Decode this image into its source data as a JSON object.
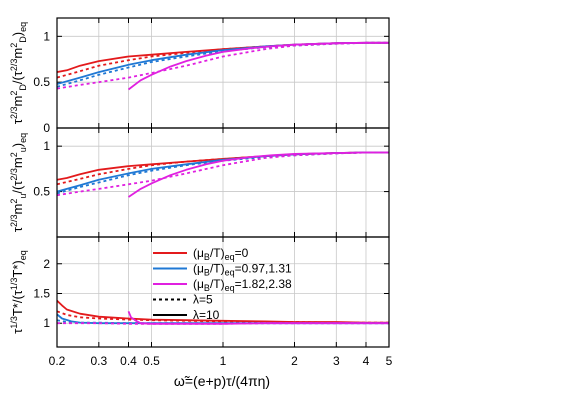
{
  "chart_data": {
    "type": "line",
    "xscale": "log",
    "xlim": [
      0.2,
      5
    ],
    "xticks": [
      0.2,
      0.3,
      0.4,
      0.5,
      1,
      2,
      3,
      4,
      5
    ],
    "xtick_labels": [
      "0.2",
      "0.3",
      "0.4",
      "0.5",
      "1",
      "2",
      "3",
      "4",
      "5"
    ],
    "xlabel_main": "ω̃=(e+p)τ/(4πη)",
    "panels": [
      {
        "id": "top",
        "ylim": [
          0,
          1.2
        ],
        "yticks": [
          0,
          0.5,
          1
        ],
        "ytick_labels": [
          "0",
          "0.5",
          "1"
        ],
        "ylabel_main": "τ",
        "ylabel_rest": "m",
        "ylabel_subs": [
          "2/3",
          "2",
          "D",
          "eq",
          "2/3",
          "2",
          "D",
          "eq"
        ],
        "series": [
          {
            "color": "#e31a1c",
            "dash": "dotted",
            "x": [
              0.2,
              0.25,
              0.3,
              0.4,
              0.5,
              0.7,
              1,
              1.5,
              2,
              3,
              4,
              5
            ],
            "y": [
              0.55,
              0.62,
              0.68,
              0.74,
              0.78,
              0.82,
              0.86,
              0.89,
              0.91,
              0.925,
              0.93,
              0.93
            ]
          },
          {
            "color": "#e31a1c",
            "dash": "solid",
            "x": [
              0.2,
              0.22,
              0.25,
              0.3,
              0.4,
              0.5,
              0.7,
              1,
              1.5,
              2,
              3,
              4,
              5
            ],
            "y": [
              0.61,
              0.63,
              0.68,
              0.73,
              0.78,
              0.8,
              0.83,
              0.86,
              0.89,
              0.91,
              0.925,
              0.93,
              0.93
            ]
          },
          {
            "color": "#1f78d4",
            "dash": "dotted",
            "x": [
              0.2,
              0.25,
              0.3,
              0.4,
              0.5,
              0.7,
              1,
              1.5,
              2,
              3,
              4,
              5
            ],
            "y": [
              0.45,
              0.52,
              0.58,
              0.66,
              0.72,
              0.78,
              0.84,
              0.88,
              0.9,
              0.92,
              0.93,
              0.93
            ]
          },
          {
            "color": "#1f78d4",
            "dash": "solid",
            "x": [
              0.2,
              0.25,
              0.3,
              0.4,
              0.5,
              0.7,
              1,
              1.5,
              2,
              3,
              4,
              5
            ],
            "y": [
              0.48,
              0.55,
              0.61,
              0.69,
              0.74,
              0.8,
              0.85,
              0.89,
              0.91,
              0.925,
              0.93,
              0.93
            ]
          },
          {
            "color": "#e020e0",
            "dash": "dotted",
            "x": [
              0.2,
              0.25,
              0.3,
              0.4,
              0.5,
              0.7,
              1,
              1.5,
              2,
              3,
              4,
              5
            ],
            "y": [
              0.43,
              0.47,
              0.5,
              0.55,
              0.6,
              0.68,
              0.78,
              0.86,
              0.9,
              0.92,
              0.93,
              0.93
            ]
          },
          {
            "color": "#e020e0",
            "dash": "solid",
            "x": [
              0.4,
              0.45,
              0.5,
              0.6,
              0.7,
              0.85,
              1,
              1.3,
              1.6,
              2,
              3,
              4,
              5
            ],
            "y": [
              0.42,
              0.52,
              0.58,
              0.67,
              0.73,
              0.79,
              0.83,
              0.87,
              0.89,
              0.91,
              0.925,
              0.93,
              0.93
            ]
          }
        ]
      },
      {
        "id": "middle",
        "ylim": [
          0,
          1.2
        ],
        "yticks": [
          0.5,
          1
        ],
        "ytick_labels": [
          "0.5",
          "1"
        ],
        "ylabel_main": "τ",
        "ylabel_rest": "m",
        "ylabel_subs": [
          "2/3",
          "2",
          "u",
          "eq",
          "2/3",
          "2",
          "u",
          "eq"
        ],
        "series": [
          {
            "color": "#e31a1c",
            "dash": "dotted",
            "x": [
              0.2,
              0.25,
              0.3,
              0.4,
              0.5,
              0.7,
              1,
              1.5,
              2,
              3,
              4,
              5
            ],
            "y": [
              0.58,
              0.64,
              0.69,
              0.75,
              0.79,
              0.83,
              0.86,
              0.89,
              0.91,
              0.925,
              0.93,
              0.93
            ]
          },
          {
            "color": "#e31a1c",
            "dash": "solid",
            "x": [
              0.2,
              0.22,
              0.25,
              0.3,
              0.4,
              0.5,
              0.7,
              1,
              1.5,
              2,
              3,
              4,
              5
            ],
            "y": [
              0.63,
              0.65,
              0.69,
              0.74,
              0.78,
              0.8,
              0.83,
              0.86,
              0.89,
              0.91,
              0.925,
              0.93,
              0.93
            ]
          },
          {
            "color": "#1f78d4",
            "dash": "dotted",
            "x": [
              0.2,
              0.25,
              0.3,
              0.4,
              0.5,
              0.7,
              1,
              1.5,
              2,
              3,
              4,
              5
            ],
            "y": [
              0.48,
              0.55,
              0.6,
              0.68,
              0.73,
              0.79,
              0.84,
              0.88,
              0.9,
              0.92,
              0.93,
              0.93
            ]
          },
          {
            "color": "#1f78d4",
            "dash": "solid",
            "x": [
              0.2,
              0.25,
              0.3,
              0.4,
              0.5,
              0.7,
              1,
              1.5,
              2,
              3,
              4,
              5
            ],
            "y": [
              0.5,
              0.57,
              0.63,
              0.7,
              0.75,
              0.8,
              0.85,
              0.89,
              0.91,
              0.925,
              0.93,
              0.93
            ]
          },
          {
            "color": "#e020e0",
            "dash": "dotted",
            "x": [
              0.2,
              0.25,
              0.3,
              0.4,
              0.5,
              0.7,
              1,
              1.5,
              2,
              3,
              4,
              5
            ],
            "y": [
              0.46,
              0.5,
              0.53,
              0.58,
              0.62,
              0.7,
              0.79,
              0.87,
              0.9,
              0.92,
              0.93,
              0.93
            ]
          },
          {
            "color": "#e020e0",
            "dash": "solid",
            "x": [
              0.4,
              0.45,
              0.5,
              0.6,
              0.7,
              0.85,
              1,
              1.3,
              1.6,
              2,
              3,
              4,
              5
            ],
            "y": [
              0.44,
              0.53,
              0.59,
              0.68,
              0.74,
              0.8,
              0.84,
              0.88,
              0.9,
              0.915,
              0.925,
              0.93,
              0.93
            ]
          }
        ]
      },
      {
        "id": "bottom",
        "ylim": [
          0.6,
          2.45
        ],
        "yticks": [
          1,
          1.5,
          2
        ],
        "ytick_labels": [
          "1",
          "1.5",
          "2"
        ],
        "ylabel_main": "τ",
        "ylabel_rest": "T*/(τ",
        "ylabel_subs": [
          "1/3",
          "1/3",
          "T*)",
          "eq"
        ],
        "series": [
          {
            "color": "#e31a1c",
            "dash": "dotted",
            "x": [
              0.2,
              0.22,
              0.25,
              0.3,
              0.4,
              0.5,
              0.7,
              1,
              1.5,
              2,
              3,
              4,
              5
            ],
            "y": [
              1.2,
              1.14,
              1.1,
              1.08,
              1.06,
              1.05,
              1.04,
              1.03,
              1.02,
              1.02,
              1.01,
              1.01,
              1.01
            ]
          },
          {
            "color": "#e31a1c",
            "dash": "solid",
            "x": [
              0.2,
              0.21,
              0.22,
              0.25,
              0.3,
              0.4,
              0.5,
              0.7,
              1,
              1.5,
              2,
              3,
              4,
              5
            ],
            "y": [
              1.38,
              1.3,
              1.23,
              1.16,
              1.11,
              1.08,
              1.06,
              1.05,
              1.04,
              1.03,
              1.02,
              1.02,
              1.01,
              1.01
            ]
          },
          {
            "color": "#1f78d4",
            "dash": "dotted",
            "x": [
              0.2,
              0.22,
              0.25,
              0.3,
              0.4,
              0.5,
              0.7,
              1,
              1.5,
              2,
              3,
              4,
              5
            ],
            "y": [
              1.05,
              1.02,
              1.01,
              1.01,
              1.0,
              1.0,
              1.0,
              1.0,
              1.0,
              1.0,
              1.0,
              1.0,
              1.0
            ]
          },
          {
            "color": "#1f78d4",
            "dash": "solid",
            "x": [
              0.2,
              0.21,
              0.23,
              0.25,
              0.3,
              0.4,
              0.5,
              0.7,
              1,
              1.5,
              2,
              3,
              4,
              5
            ],
            "y": [
              1.15,
              1.08,
              1.03,
              1.01,
              1.0,
              1.0,
              1.0,
              1.0,
              1.0,
              1.0,
              1.0,
              1.0,
              1.0,
              1.0
            ]
          },
          {
            "color": "#e020e0",
            "dash": "dotted",
            "x": [
              0.2,
              0.25,
              0.3,
              0.4,
              0.5,
              0.7,
              1,
              1.5,
              2,
              3,
              4,
              5
            ],
            "y": [
              1.0,
              1.0,
              1.0,
              0.99,
              0.99,
              0.99,
              0.99,
              1.0,
              1.0,
              1.0,
              1.0,
              1.0
            ]
          },
          {
            "color": "#e020e0",
            "dash": "solid",
            "x": [
              0.4,
              0.41,
              0.43,
              0.45,
              0.5,
              0.6,
              0.7,
              1,
              1.5,
              2,
              3,
              4,
              5
            ],
            "y": [
              1.2,
              1.1,
              1.04,
              1.0,
              0.99,
              0.99,
              0.99,
              0.99,
              1.0,
              1.0,
              1.0,
              1.0,
              1.0
            ]
          }
        ]
      }
    ],
    "legend": {
      "position": "bottom-panel-center",
      "entries": [
        {
          "label": "(μ",
          "sub_a": "B",
          "mid": "/T)",
          "sub_b": "eq",
          "tail": "=0",
          "color": "#e31a1c",
          "dash": "solid"
        },
        {
          "label": "(μ",
          "sub_a": "B",
          "mid": "/T)",
          "sub_b": "eq",
          "tail": "=0.97,1.31",
          "color": "#1f78d4",
          "dash": "solid"
        },
        {
          "label": "(μ",
          "sub_a": "B",
          "mid": "/T)",
          "sub_b": "eq",
          "tail": "=1.82,2.38",
          "color": "#e020e0",
          "dash": "solid"
        },
        {
          "label": "λ=5",
          "color": "#000000",
          "dash": "dotted"
        },
        {
          "label": "λ=10",
          "color": "#000000",
          "dash": "solid"
        }
      ]
    },
    "grid": true
  }
}
